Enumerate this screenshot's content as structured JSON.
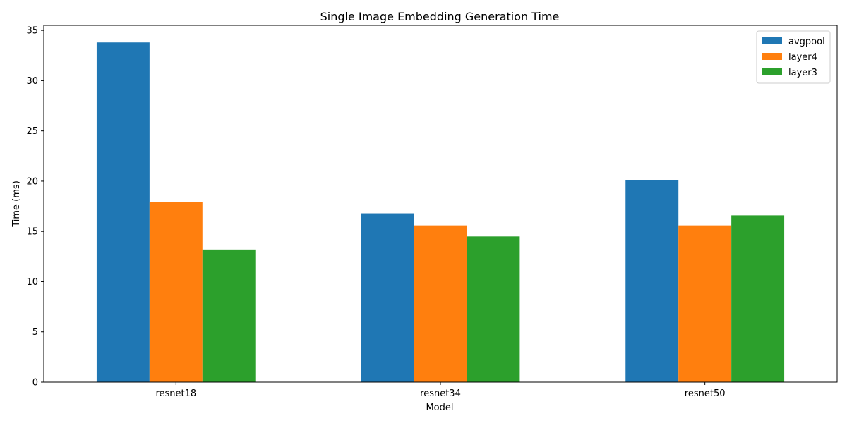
{
  "chart_data": {
    "type": "bar",
    "title": "Single Image Embedding Generation Time",
    "xlabel": "Model",
    "ylabel": "Time (ms)",
    "categories": [
      "resnet18",
      "resnet34",
      "resnet50"
    ],
    "series": [
      {
        "name": "avgpool",
        "color": "#1f77b4",
        "values": [
          33.8,
          16.8,
          20.1
        ]
      },
      {
        "name": "layer4",
        "color": "#ff7f0e",
        "values": [
          17.9,
          15.6,
          15.6
        ]
      },
      {
        "name": "layer3",
        "color": "#2ca02c",
        "values": [
          13.2,
          14.5,
          16.6
        ]
      }
    ],
    "ylim": [
      0,
      35.5
    ],
    "yticks": [
      0,
      5,
      10,
      15,
      20,
      25,
      30,
      35
    ],
    "legend_position": "top-right",
    "grid": false
  }
}
